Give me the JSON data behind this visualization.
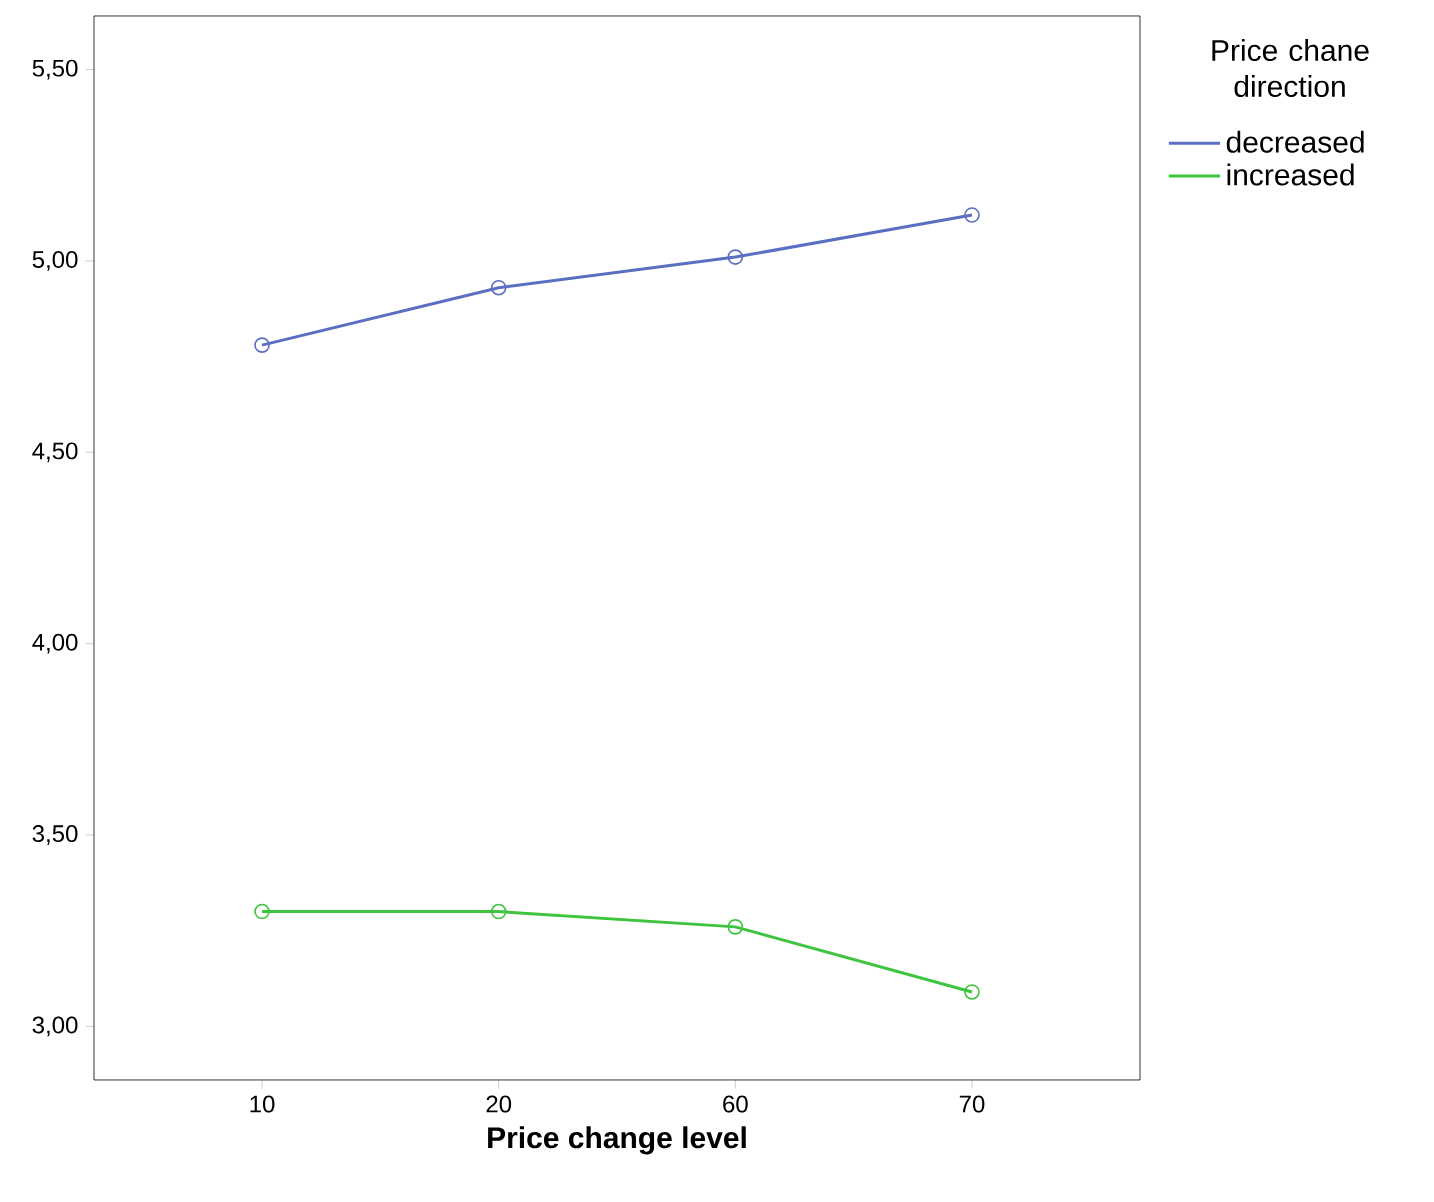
{
  "chart_data": {
    "type": "line",
    "xlabel": "**Price change level**",
    "legend_title": "Price chane direction",
    "categories": [
      "10",
      "20",
      "60",
      "70"
    ],
    "series": [
      {
        "name": "decreased",
        "color": "#5b6fc2",
        "values": [
          4.78,
          4.93,
          5.01,
          5.12
        ]
      },
      {
        "name": "increased",
        "color": "#3ec43e",
        "values": [
          3.3,
          3.3,
          3.26,
          3.09
        ]
      }
    ],
    "ylim": [
      2.86,
      5.64
    ],
    "yticks": [
      {
        "value": 3.0,
        "label": "3,00"
      },
      {
        "value": 3.5,
        "label": "3,50"
      },
      {
        "value": 4.0,
        "label": "4,00"
      },
      {
        "value": 4.5,
        "label": "4,50"
      },
      {
        "value": 5.0,
        "label": "5,00"
      },
      {
        "value": 5.5,
        "label": "5,50"
      }
    ],
    "legend": "top right",
    "marker": "circle",
    "line_style": "solid",
    "grid": false
  }
}
